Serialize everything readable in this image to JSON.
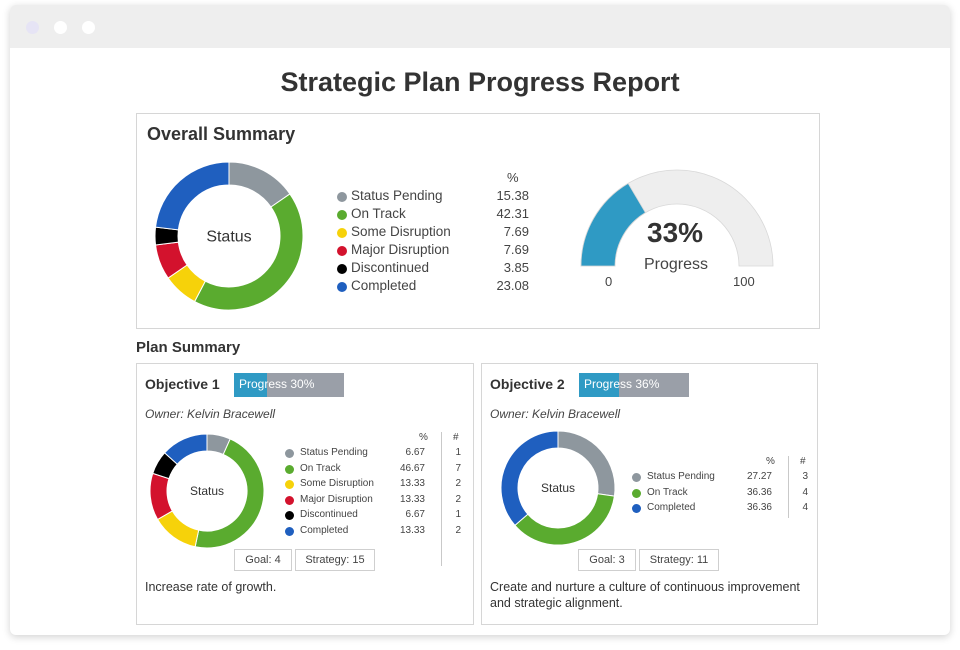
{
  "report_title": "Strategic Plan Progress Report",
  "colors": {
    "status_pending": "#8e979e",
    "on_track": "#5aab2f",
    "some_disruption": "#f6d20a",
    "major_disruption": "#d3122d",
    "discontinued": "#000000",
    "completed": "#1f5fbf",
    "progress_fill": "#2f9ac4",
    "gauge_track": "#eeeeee"
  },
  "overall": {
    "heading": "Overall Summary",
    "donut_label": "Status",
    "pct_header": "%",
    "items": [
      {
        "label": "Status Pending",
        "pct": "15.38",
        "value": 15.38,
        "color": "#8e979e",
        "icon": "status-pending-dot"
      },
      {
        "label": "On Track",
        "pct": "42.31",
        "value": 42.31,
        "color": "#5aab2f",
        "icon": "on-track-dot"
      },
      {
        "label": "Some Disruption",
        "pct": "7.69",
        "value": 7.69,
        "color": "#f6d20a",
        "icon": "some-disruption-dot"
      },
      {
        "label": "Major Disruption",
        "pct": "7.69",
        "value": 7.69,
        "color": "#d3122d",
        "icon": "major-disruption-dot"
      },
      {
        "label": "Discontinued",
        "pct": "3.85",
        "value": 3.85,
        "color": "#000000",
        "icon": "discontinued-dot"
      },
      {
        "label": "Completed",
        "pct": "23.08",
        "value": 23.08,
        "color": "#1f5fbf",
        "icon": "completed-dot"
      }
    ],
    "gauge": {
      "value": 33,
      "value_label": "33%",
      "caption": "Progress",
      "min_label": "0",
      "max_label": "100",
      "min": 0,
      "max": 100
    }
  },
  "plan_summary": {
    "heading": "Plan Summary",
    "objectives": [
      {
        "title": "Objective 1",
        "progress_label": "Progress 30%",
        "progress": 30,
        "owner": "Owner: Kelvin Bracewell",
        "donut_label": "Status",
        "pct_header": "%",
        "count_header": "#",
        "items": [
          {
            "label": "Status Pending",
            "pct": "6.67",
            "count": "1",
            "value": 6.67,
            "color": "#8e979e"
          },
          {
            "label": "On Track",
            "pct": "46.67",
            "count": "7",
            "value": 46.67,
            "color": "#5aab2f"
          },
          {
            "label": "Some Disruption",
            "pct": "13.33",
            "count": "2",
            "value": 13.33,
            "color": "#f6d20a"
          },
          {
            "label": "Major Disruption",
            "pct": "13.33",
            "count": "2",
            "value": 13.33,
            "color": "#d3122d"
          },
          {
            "label": "Discontinued",
            "pct": "6.67",
            "count": "1",
            "value": 6.67,
            "color": "#000000"
          },
          {
            "label": "Completed",
            "pct": "13.33",
            "count": "2",
            "value": 13.33,
            "color": "#1f5fbf"
          }
        ],
        "goal_label": "Goal: 4",
        "strategy_label": "Strategy: 15",
        "description": "Increase rate of growth."
      },
      {
        "title": "Objective 2",
        "progress_label": "Progress 36%",
        "progress": 36,
        "owner": "Owner: Kelvin Bracewell",
        "donut_label": "Status",
        "pct_header": "%",
        "count_header": "#",
        "items": [
          {
            "label": "Status Pending",
            "pct": "27.27",
            "count": "3",
            "value": 27.27,
            "color": "#8e979e"
          },
          {
            "label": "On Track",
            "pct": "36.36",
            "count": "4",
            "value": 36.36,
            "color": "#5aab2f"
          },
          {
            "label": "Completed",
            "pct": "36.36",
            "count": "4",
            "value": 36.36,
            "color": "#1f5fbf"
          }
        ],
        "goal_label": "Goal: 3",
        "strategy_label": "Strategy: 11",
        "description": "Create and nurture a culture of continuous improvement and strategic alignment."
      }
    ]
  }
}
